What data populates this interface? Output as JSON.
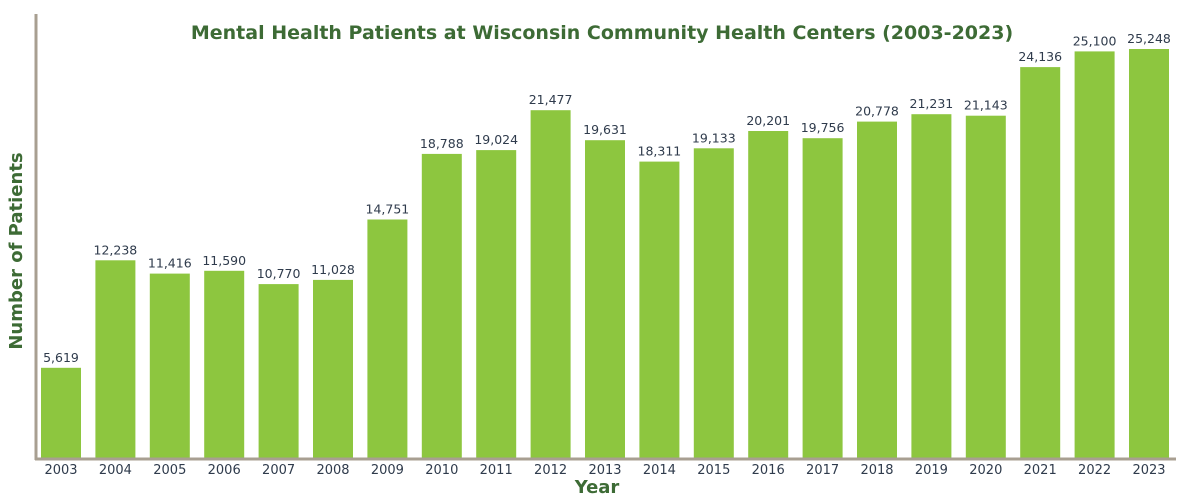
{
  "chart_data": {
    "type": "bar",
    "title": "Mental Health Patients at Wisconsin Community Health Centers (2003-2023)",
    "xlabel": "Year",
    "ylabel": "Number of Patients",
    "categories": [
      "2003",
      "2004",
      "2005",
      "2006",
      "2007",
      "2008",
      "2009",
      "2010",
      "2011",
      "2012",
      "2013",
      "2014",
      "2015",
      "2016",
      "2017",
      "2018",
      "2019",
      "2020",
      "2021",
      "2022",
      "2023"
    ],
    "values": [
      5619,
      12238,
      11416,
      11590,
      10770,
      11028,
      14751,
      18788,
      19024,
      21477,
      19631,
      18311,
      19133,
      20201,
      19756,
      20778,
      21231,
      21143,
      24136,
      25100,
      25248
    ],
    "value_labels": [
      "5,619",
      "12,238",
      "11,416",
      "11,590",
      "10,770",
      "11,028",
      "14,751",
      "18,788",
      "19,024",
      "21,477",
      "19,631",
      "18,311",
      "19,133",
      "20,201",
      "19,756",
      "20,778",
      "21,231",
      "21,143",
      "24,136",
      "25,100",
      "25,248"
    ],
    "ylim": [
      0,
      26000
    ],
    "grid": false,
    "legend": "none",
    "colors": {
      "bar": "#8dc63f",
      "title": "#3d6b35",
      "axis": "#a89f91",
      "text": "#2f3b4c"
    }
  }
}
